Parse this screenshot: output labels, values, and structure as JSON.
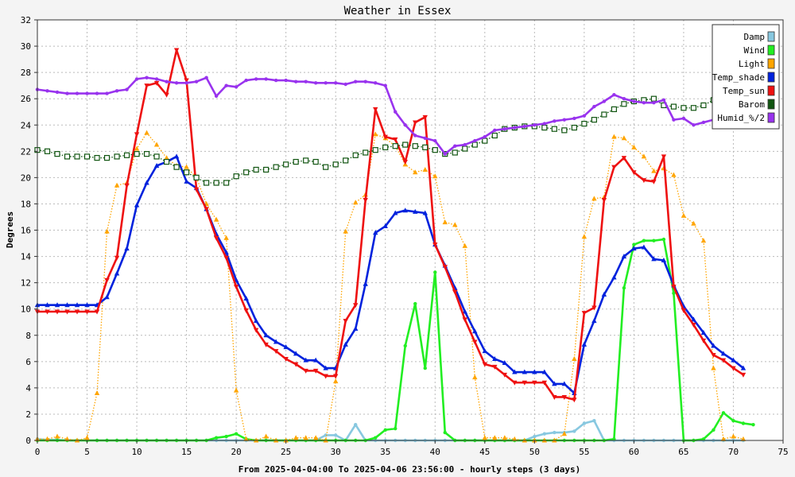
{
  "chart_data": {
    "type": "line",
    "title": "Weather in Essex",
    "xlabel": "From 2025-04-04:00 To 2025-04-06 23:56:00 - hourly steps (3 days)",
    "ylabel": "Degrees",
    "xlim": [
      0,
      75
    ],
    "ylim": [
      0,
      32
    ],
    "x_ticks": [
      0,
      5,
      10,
      15,
      20,
      25,
      30,
      35,
      40,
      45,
      50,
      55,
      60,
      65,
      70,
      75
    ],
    "y_ticks": [
      0,
      2,
      4,
      6,
      8,
      10,
      12,
      14,
      16,
      18,
      20,
      22,
      24,
      26,
      28,
      30,
      32
    ],
    "grid": true,
    "legend_position": "top-right",
    "series": [
      {
        "name": "Damp",
        "color": "#88c8e0",
        "marker": "dot",
        "style": "solid",
        "values": [
          0.1,
          0.05,
          0.05,
          0,
          0,
          0,
          0,
          0,
          0,
          0,
          0,
          0,
          0,
          0,
          0,
          0,
          0,
          0,
          0,
          0,
          0,
          0,
          0,
          0,
          0,
          0,
          0,
          0,
          0,
          0.4,
          0.4,
          0,
          1.2,
          0,
          0,
          0,
          0,
          0,
          0,
          0,
          0,
          0,
          0,
          0,
          0,
          0,
          0,
          0,
          0,
          0,
          0.3,
          0.5,
          0.6,
          0.6,
          0.7,
          1.3,
          1.5,
          0,
          0,
          0,
          0,
          0,
          0,
          0,
          0,
          0,
          0,
          0,
          0,
          0,
          0,
          0
        ]
      },
      {
        "name": "Wind",
        "color": "#22ee22",
        "marker": "dot",
        "style": "solid",
        "values": [
          0,
          0,
          0,
          0,
          0,
          0,
          0,
          0,
          0,
          0,
          0,
          0,
          0,
          0,
          0,
          0,
          0,
          0,
          0.2,
          0.3,
          0.5,
          0.1,
          0,
          0,
          0,
          0,
          0,
          0,
          0,
          0,
          0,
          0,
          0,
          0,
          0.2,
          0.8,
          0.9,
          7.2,
          10.4,
          5.5,
          12.8,
          0.6,
          0,
          0,
          0,
          0,
          0,
          0,
          0,
          0,
          0,
          0,
          0,
          0,
          0,
          0,
          0,
          0,
          0.1,
          11.6,
          14.9,
          15.2,
          15.2,
          15.3,
          11.2,
          0,
          0,
          0.1,
          0.8,
          2.1,
          1.5,
          1.3,
          1.2
        ]
      },
      {
        "name": "Light",
        "color": "#ffa500",
        "marker": "triangle-up",
        "style": "dotted",
        "values": [
          0.1,
          0.1,
          0.3,
          0.1,
          0,
          0.2,
          3.6,
          15.9,
          19.4,
          19.6,
          22.2,
          23.4,
          22.5,
          21.5,
          20.9,
          20.8,
          20,
          18,
          16.8,
          15.4,
          3.8,
          0.1,
          0,
          0.3,
          0,
          0,
          0.2,
          0.2,
          0.2,
          0,
          4.5,
          15.9,
          18.1,
          18.7,
          23.3,
          23,
          22.4,
          21,
          20.4,
          20.6,
          20.1,
          16.6,
          16.4,
          14.8,
          4.8,
          0.2,
          0.2,
          0.2,
          0.1,
          0,
          0,
          0,
          0,
          0.5,
          6.2,
          15.5,
          18.4,
          18.5,
          23.1,
          23,
          22.3,
          21.6,
          20.5,
          20.7,
          20.2,
          17.1,
          16.5,
          15.2,
          5.5,
          0.1,
          0.3,
          0.1
        ]
      },
      {
        "name": "Temp_shade",
        "color": "#0022dd",
        "marker": "triangle-up",
        "style": "solid",
        "values": [
          10.3,
          10.3,
          10.3,
          10.3,
          10.3,
          10.3,
          10.3,
          10.9,
          12.7,
          14.6,
          17.9,
          19.6,
          20.9,
          21.2,
          21.6,
          19.7,
          19.2,
          17.6,
          15.7,
          14.3,
          12.2,
          10.8,
          9.1,
          8,
          7.5,
          7.1,
          6.6,
          6.1,
          6.1,
          5.5,
          5.5,
          7.3,
          8.5,
          11.9,
          15.8,
          16.3,
          17.3,
          17.5,
          17.4,
          17.3,
          14.9,
          13.3,
          11.6,
          9.8,
          8.3,
          6.8,
          6.2,
          5.9,
          5.2,
          5.2,
          5.2,
          5.2,
          4.3,
          4.3,
          3.6,
          7.3,
          9.1,
          11.1,
          12.4,
          14,
          14.6,
          14.7,
          13.8,
          13.7,
          11.8,
          10.2,
          9.2,
          8.2,
          7.2,
          6.6,
          6.1,
          5.5
        ]
      },
      {
        "name": "Temp_sun",
        "color": "#ee1111",
        "marker": "triangle-down",
        "style": "solid",
        "values": [
          9.8,
          9.8,
          9.8,
          9.8,
          9.8,
          9.8,
          9.8,
          12.2,
          13.9,
          19.4,
          23.3,
          27,
          27.2,
          26.3,
          29.7,
          27.4,
          19.1,
          17.6,
          15.4,
          13.9,
          11.7,
          9.9,
          8.4,
          7.3,
          6.8,
          6.2,
          5.8,
          5.3,
          5.3,
          4.9,
          4.9,
          9.1,
          10.3,
          18.3,
          25.2,
          23.1,
          22.9,
          21.2,
          24.2,
          24.6,
          14.9,
          13.2,
          11.3,
          9.2,
          7.5,
          5.8,
          5.6,
          5,
          4.4,
          4.4,
          4.4,
          4.4,
          3.3,
          3.3,
          3.1,
          9.7,
          10.1,
          18.3,
          20.8,
          21.5,
          20.4,
          19.8,
          19.7,
          21.6,
          11.7,
          9.9,
          8.8,
          7.6,
          6.5,
          6.1,
          5.5,
          5
        ]
      },
      {
        "name": "Barom",
        "color": "#115511",
        "marker": "square",
        "style": "dotted",
        "values": [
          22.1,
          22,
          21.8,
          21.6,
          21.6,
          21.6,
          21.5,
          21.5,
          21.6,
          21.7,
          21.8,
          21.8,
          21.6,
          21.2,
          20.8,
          20.4,
          20,
          19.6,
          19.6,
          19.6,
          20.1,
          20.4,
          20.6,
          20.6,
          20.8,
          21,
          21.2,
          21.3,
          21.2,
          20.8,
          21,
          21.3,
          21.7,
          21.9,
          22.1,
          22.3,
          22.4,
          22.5,
          22.4,
          22.3,
          22.1,
          21.8,
          21.9,
          22.2,
          22.5,
          22.8,
          23.2,
          23.7,
          23.8,
          23.9,
          23.9,
          23.8,
          23.7,
          23.6,
          23.8,
          24.1,
          24.4,
          24.8,
          25.2,
          25.6,
          25.8,
          25.9,
          26,
          25.5,
          25.4,
          25.3,
          25.3,
          25.5,
          25.9
        ]
      },
      {
        "name": "Humid_%/2",
        "color": "#9933ee",
        "marker": "dot",
        "style": "solid",
        "values": [
          26.7,
          26.6,
          26.5,
          26.4,
          26.4,
          26.4,
          26.4,
          26.4,
          26.6,
          26.7,
          27.5,
          27.6,
          27.5,
          27.3,
          27.2,
          27.2,
          27.3,
          27.6,
          26.2,
          27,
          26.9,
          27.4,
          27.5,
          27.5,
          27.4,
          27.4,
          27.3,
          27.3,
          27.2,
          27.2,
          27.2,
          27.1,
          27.3,
          27.3,
          27.2,
          27,
          25,
          24,
          23.2,
          23,
          22.8,
          21.8,
          22.4,
          22.5,
          22.8,
          23.1,
          23.6,
          23.7,
          23.8,
          23.9,
          24,
          24.1,
          24.3,
          24.4,
          24.5,
          24.7,
          25.4,
          25.8,
          26.3,
          26,
          25.8,
          25.7,
          25.7,
          25.9,
          24.4,
          24.5,
          24,
          24.2,
          24.4
        ]
      }
    ]
  }
}
